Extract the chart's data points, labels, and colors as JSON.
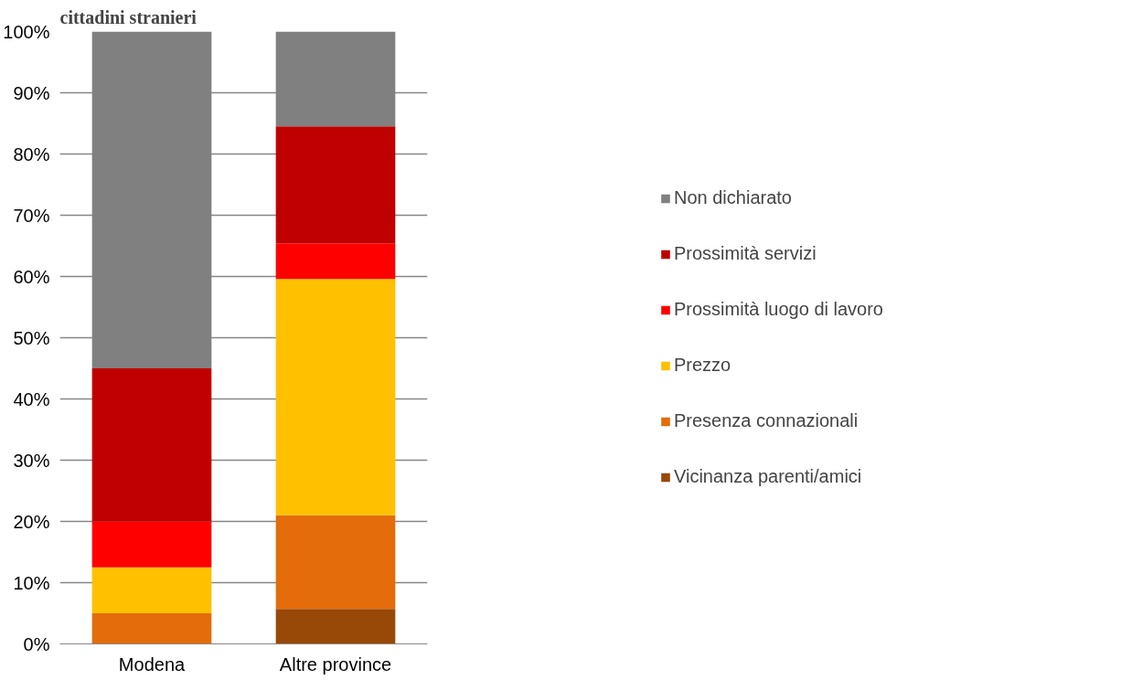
{
  "chart_data": {
    "type": "bar",
    "stacked": true,
    "title": "cittadini stranieri",
    "categories": [
      "Modena",
      "Altre province"
    ],
    "series": [
      {
        "name": "Vicinanza parenti/amici",
        "color": "#984807",
        "values": [
          0,
          5.7
        ]
      },
      {
        "name": "Presenza connazionali",
        "color": "#e46c0a",
        "values": [
          5,
          15.3
        ]
      },
      {
        "name": "Prezzo",
        "color": "#ffc000",
        "values": [
          7.5,
          38.6
        ]
      },
      {
        "name": "Prossimità luogo di lavoro",
        "color": "#ff0000",
        "values": [
          7.5,
          5.8
        ]
      },
      {
        "name": "Prossimità servizi",
        "color": "#c00000",
        "values": [
          25,
          19.1
        ]
      },
      {
        "name": "Non dichiarato",
        "color": "#808080",
        "values": [
          55,
          15.5
        ]
      }
    ],
    "ylim": [
      0,
      100
    ],
    "yticks": [
      {
        "value": 0,
        "label": "0%"
      },
      {
        "value": 10,
        "label": "10%"
      },
      {
        "value": 20,
        "label": "20%"
      },
      {
        "value": 30,
        "label": "30%"
      },
      {
        "value": 40,
        "label": "40%"
      },
      {
        "value": 50,
        "label": "50%"
      },
      {
        "value": 60,
        "label": "60%"
      },
      {
        "value": 70,
        "label": "70%"
      },
      {
        "value": 80,
        "label": "80%"
      },
      {
        "value": 90,
        "label": "90%"
      },
      {
        "value": 100,
        "label": "100%"
      }
    ],
    "grid": "y",
    "legend": "right"
  }
}
